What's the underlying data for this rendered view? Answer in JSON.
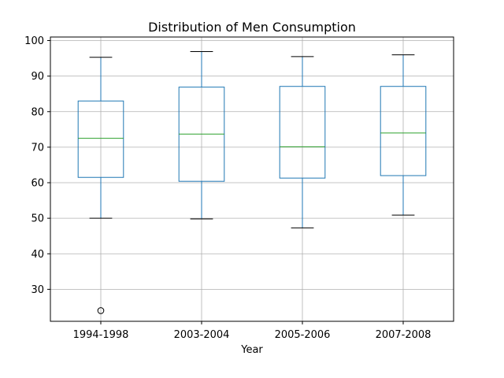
{
  "chart_data": {
    "type": "box",
    "title": "Distribution of Men Consumption",
    "xlabel": "Year",
    "ylabel": "",
    "ylim": [
      21,
      101
    ],
    "yticks": [
      30,
      40,
      50,
      60,
      70,
      80,
      90,
      100
    ],
    "grid": true,
    "categories": [
      "1994-1998",
      "2003-2004",
      "2005-2006",
      "2007-2008"
    ],
    "boxes": [
      {
        "whisker_low": 50.0,
        "q1": 61.5,
        "median": 72.5,
        "q3": 83.0,
        "whisker_high": 95.3,
        "outliers": [
          24.0
        ]
      },
      {
        "whisker_low": 49.8,
        "q1": 60.4,
        "median": 73.7,
        "q3": 86.9,
        "whisker_high": 96.9,
        "outliers": []
      },
      {
        "whisker_low": 47.3,
        "q1": 61.3,
        "median": 70.1,
        "q3": 87.1,
        "whisker_high": 95.5,
        "outliers": []
      },
      {
        "whisker_low": 50.9,
        "q1": 62.0,
        "median": 74.0,
        "q3": 87.1,
        "whisker_high": 96.0,
        "outliers": []
      }
    ],
    "colors": {
      "box": "#1f77b4",
      "median": "#2ca02c",
      "cap": "#000000",
      "grid": "#b0b0b0",
      "outlier": "#000000"
    }
  }
}
